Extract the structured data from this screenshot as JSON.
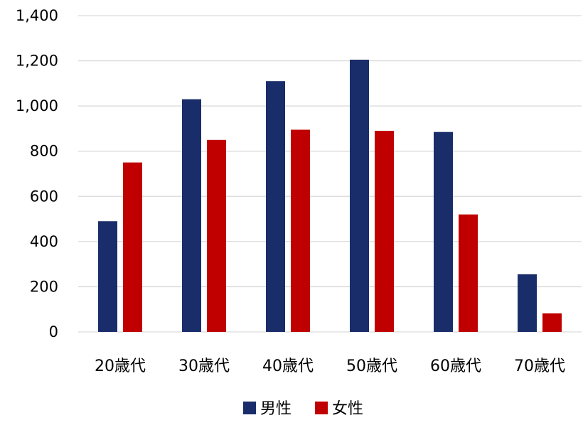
{
  "chart_data": {
    "type": "bar",
    "title": "",
    "xlabel": "",
    "ylabel": "",
    "categories": [
      "20歳代",
      "30歳代",
      "40歳代",
      "50歳代",
      "60歳代",
      "70歳代"
    ],
    "series": [
      {
        "name": "男性",
        "color": "#1a2d6b",
        "values": [
          490,
          1030,
          1110,
          1205,
          885,
          255
        ]
      },
      {
        "name": "女性",
        "color": "#c00000",
        "values": [
          750,
          850,
          895,
          890,
          520,
          82
        ]
      }
    ],
    "ylim": [
      0,
      1400
    ],
    "y_ticks": [
      0,
      200,
      400,
      600,
      800,
      1000,
      1200,
      1400
    ],
    "y_tick_labels": [
      "0",
      "200",
      "400",
      "600",
      "800",
      "1,000",
      "1,200",
      "1,400"
    ],
    "grid": true,
    "legend_position": "bottom"
  }
}
